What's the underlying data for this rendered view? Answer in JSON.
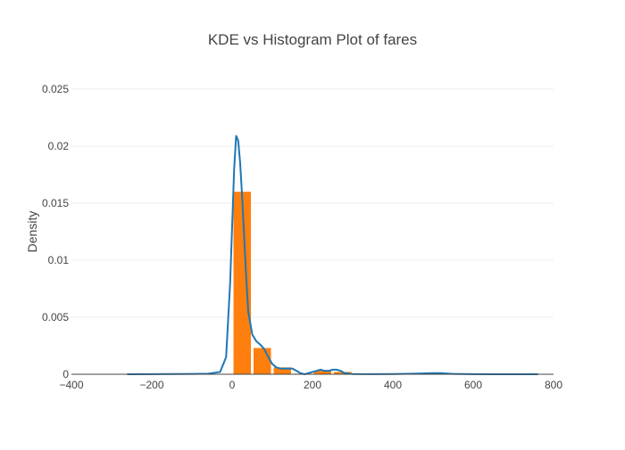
{
  "chart_data": {
    "type": "bar",
    "title": "KDE vs Histogram Plot of fares",
    "xlabel": "",
    "ylabel": "Density",
    "xlim": [
      -400,
      800
    ],
    "ylim": [
      0,
      0.025
    ],
    "x_ticks": [
      -400,
      -200,
      0,
      200,
      400,
      600,
      800
    ],
    "x_tick_labels": [
      "−400",
      "−200",
      "0",
      "200",
      "400",
      "600",
      "800"
    ],
    "y_ticks": [
      0,
      0.005,
      0.01,
      0.015,
      0.02,
      0.025
    ],
    "y_tick_labels": [
      "0",
      "0.005",
      "0.01",
      "0.015",
      "0.02",
      "0.025"
    ],
    "grid": true,
    "colors": {
      "histogram": "#ff7f0e",
      "kde": "#1f77b4",
      "grid": "#eeeeee",
      "axis": "#444444"
    },
    "series": [
      {
        "type": "histogram",
        "bins": [
          {
            "x0": 0,
            "x1": 50,
            "density": 0.016
          },
          {
            "x0": 50,
            "x1": 100,
            "density": 0.0023
          },
          {
            "x0": 100,
            "x1": 150,
            "density": 0.0006
          },
          {
            "x0": 150,
            "x1": 200,
            "density": 5e-05
          },
          {
            "x0": 200,
            "x1": 250,
            "density": 0.0003
          },
          {
            "x0": 250,
            "x1": 300,
            "density": 0.0002
          },
          {
            "x0": 300,
            "x1": 350,
            "density": 0
          },
          {
            "x0": 350,
            "x1": 400,
            "density": 0
          },
          {
            "x0": 400,
            "x1": 450,
            "density": 0
          },
          {
            "x0": 450,
            "x1": 500,
            "density": 0
          },
          {
            "x0": 500,
            "x1": 550,
            "density": 2e-05
          }
        ]
      },
      {
        "type": "line",
        "x": [
          -260,
          -200,
          -150,
          -100,
          -60,
          -30,
          -15,
          -5,
          0,
          5,
          10,
          15,
          20,
          25,
          30,
          35,
          40,
          50,
          60,
          70,
          80,
          90,
          100,
          110,
          120,
          130,
          140,
          150,
          160,
          170,
          180,
          190,
          200,
          210,
          220,
          230,
          240,
          250,
          260,
          270,
          280,
          300,
          350,
          400,
          450,
          500,
          520,
          550,
          600,
          650,
          700,
          760
        ],
        "y": [
          0,
          1e-05,
          2e-05,
          3e-05,
          5e-05,
          0.0002,
          0.0015,
          0.008,
          0.013,
          0.018,
          0.0209,
          0.0205,
          0.0185,
          0.0155,
          0.012,
          0.0085,
          0.0055,
          0.0035,
          0.0029,
          0.0026,
          0.0022,
          0.0015,
          0.0009,
          0.0006,
          0.0005,
          0.0005,
          0.0005,
          0.0005,
          0.0003,
          0.0001,
          0.0,
          0.0001,
          0.0002,
          0.0003,
          0.0004,
          0.0003,
          0.0003,
          0.0004,
          0.0004,
          0.0003,
          0.0001,
          2e-05,
          1e-05,
          2e-05,
          5e-05,
          0.0001,
          0.0001,
          3e-05,
          1e-05,
          0.0,
          0.0,
          0.0
        ]
      }
    ]
  }
}
